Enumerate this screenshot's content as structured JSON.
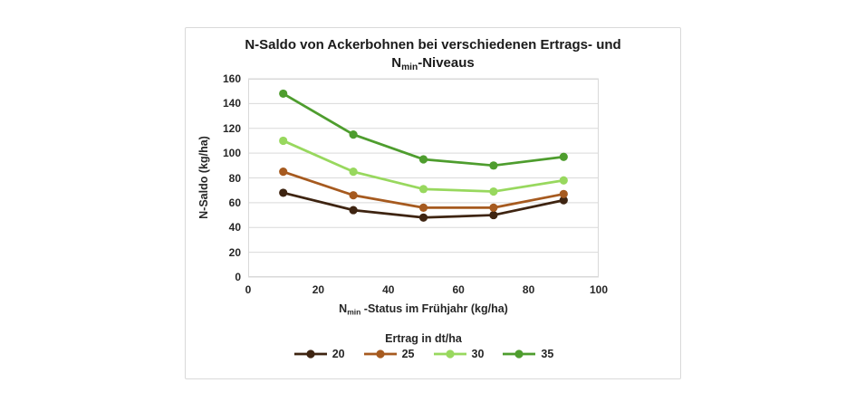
{
  "chart": {
    "title_line1": "N-Saldo von Ackerbohnen bei verschiedenen Ertrags- und",
    "title_line2": {
      "prefix": "N",
      "sub": "min",
      "suffix": "-Niveaus"
    },
    "y_axis": {
      "label": "N-Saldo (kg/ha)"
    },
    "x_axis": {
      "label_prefix": "N",
      "label_sub": "min",
      "label_suffix": " -Status im Frühjahr (kg/ha)"
    },
    "legend": {
      "title": "Ertrag in dt/ha"
    }
  },
  "chart_data": {
    "type": "line",
    "title": "N-Saldo von Ackerbohnen bei verschiedenen Ertrags- und Nmin-Niveaus",
    "xlabel": "Nmin -Status im Frühjahr (kg/ha)",
    "ylabel": "N-Saldo (kg/ha)",
    "legend_title": "Ertrag in dt/ha",
    "legend_position": "bottom",
    "grid": "horizontal",
    "grid_color": "#d9d9d9",
    "axis_text_color": "#262626",
    "marker": "circle",
    "x": [
      10,
      30,
      50,
      70,
      90
    ],
    "series": [
      {
        "name": "20",
        "color": "#3e2411",
        "values": [
          68,
          54,
          48,
          50,
          62
        ]
      },
      {
        "name": "25",
        "color": "#a65a1f",
        "values": [
          85,
          66,
          56,
          56,
          67
        ]
      },
      {
        "name": "30",
        "color": "#98d85e",
        "values": [
          110,
          85,
          71,
          69,
          78
        ]
      },
      {
        "name": "35",
        "color": "#4e9d2e",
        "values": [
          148,
          115,
          95,
          90,
          97
        ]
      }
    ],
    "xlim": [
      0,
      100
    ],
    "ylim": [
      0,
      160
    ],
    "x_ticks": [
      0,
      20,
      40,
      60,
      80,
      100
    ],
    "y_ticks": [
      0,
      20,
      40,
      60,
      80,
      100,
      120,
      140,
      160
    ]
  }
}
